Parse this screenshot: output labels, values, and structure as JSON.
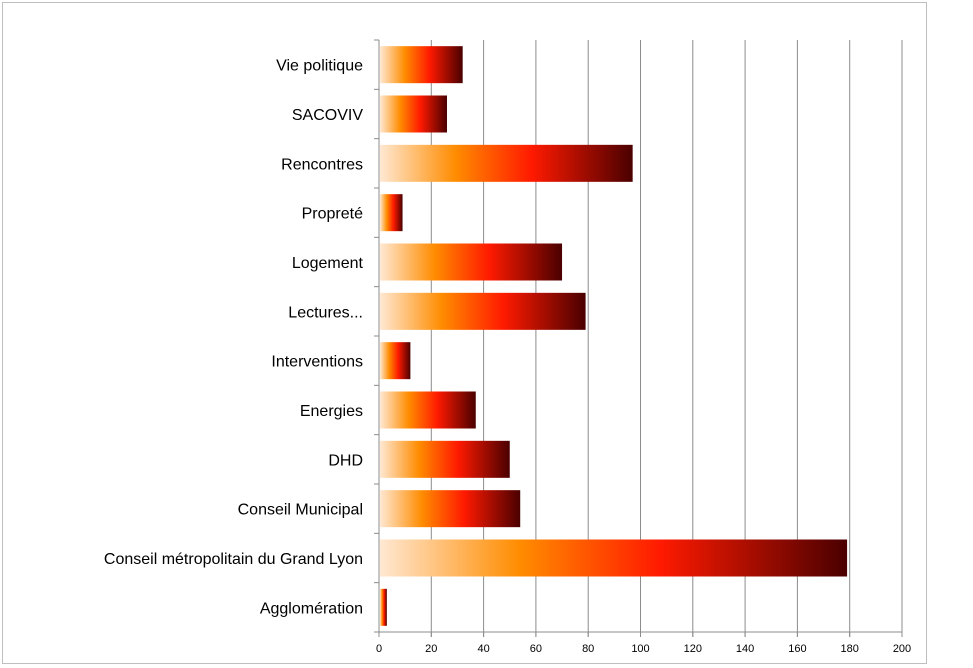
{
  "chart_data": {
    "type": "bar",
    "orientation": "horizontal",
    "categories": [
      "Vie politique",
      "SACOVIV",
      "Rencontres",
      "Propreté",
      "Logement",
      "Lectures...",
      "Interventions",
      "Energies",
      "DHD",
      "Conseil Municipal",
      "Conseil métropolitain du Grand Lyon",
      "Agglomération"
    ],
    "values": [
      32,
      26,
      97,
      9,
      70,
      79,
      12,
      37,
      50,
      54,
      179,
      3
    ],
    "xlim": [
      0,
      200
    ],
    "xticks": [
      0,
      20,
      40,
      60,
      80,
      100,
      120,
      140,
      160,
      180,
      200
    ],
    "title": "",
    "xlabel": "",
    "ylabel": "",
    "grid": "vertical",
    "legend": "none",
    "bar_gradient": [
      "#ffe8d2",
      "#ff8c00",
      "#ff1a00",
      "#4a0000"
    ],
    "gridline_color": "#8c8c8c",
    "axis_color": "#8c8c8c"
  }
}
